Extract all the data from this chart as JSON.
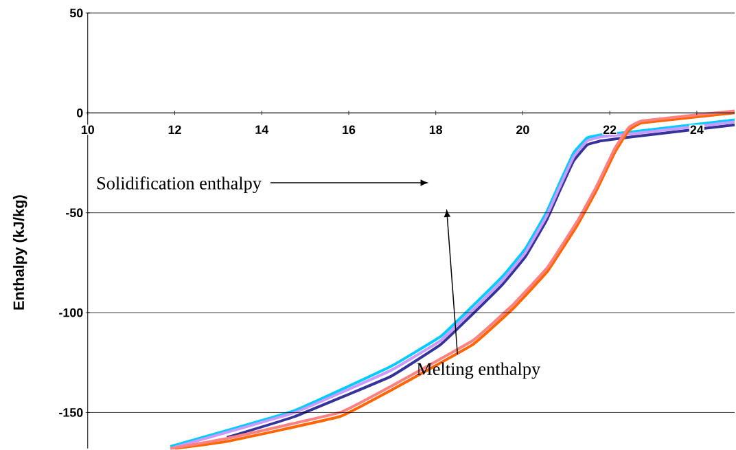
{
  "chart_data": {
    "type": "line",
    "ylabel": "Enthalpy (kJ/kg)",
    "xlim": [
      10,
      24.87
    ],
    "ylim": [
      -168,
      50
    ],
    "xticks": [
      10,
      12,
      14,
      16,
      18,
      20,
      22,
      24
    ],
    "yticks": [
      -150,
      -100,
      -50,
      0,
      50
    ],
    "grid": "y",
    "marker": "none",
    "line_style": "solid",
    "annotations": [
      "Solidification enthalpy",
      "Melting enthalpy"
    ],
    "series": [
      {
        "color": "#00ccff",
        "x": [
          11.9,
          14.76,
          16.96,
          18.11,
          18.74,
          19.53,
          20.06,
          20.54,
          20.85,
          21.17,
          21.48,
          21.8,
          22.5,
          24.87
        ],
        "values": [
          -167,
          -149,
          -127,
          -112,
          -99,
          -82,
          -68,
          -50,
          -35,
          -20,
          -12.5,
          -11,
          -9.5,
          -3.5
        ]
      },
      {
        "color": "#333399",
        "x": [
          13.2,
          14.76,
          16.96,
          18.11,
          18.74,
          19.53,
          20.06,
          20.54,
          20.85,
          21.17,
          21.48,
          21.8,
          22.5,
          24.87
        ],
        "values": [
          -162.5,
          -152,
          -132,
          -116,
          -103,
          -86,
          -72,
          -54,
          -39,
          -24,
          -16,
          -14,
          -12,
          -6
        ]
      },
      {
        "color": "#cc99ff",
        "x": [
          11.9,
          14.76,
          16.96,
          18.11,
          18.74,
          19.53,
          20.06,
          20.54,
          20.85,
          21.17,
          21.48,
          21.8,
          22.5,
          24.87
        ],
        "values": [
          -168,
          -150,
          -129,
          -114,
          -101,
          -84,
          -70,
          -52,
          -37,
          -22,
          -14,
          -12,
          -10.5,
          -4.5
        ]
      },
      {
        "color": "#ff6600",
        "x": [
          12.0,
          13.2,
          15.8,
          16.96,
          18.85,
          19.8,
          20.58,
          21.26,
          21.69,
          22.11,
          22.43,
          22.74,
          24.87
        ],
        "values": [
          -168,
          -164.5,
          -152,
          -139,
          -116,
          -97.5,
          -79,
          -56,
          -39,
          -20,
          -9,
          -5,
          0
        ]
      },
      {
        "color": "#ff8080",
        "x": [
          11.9,
          13.2,
          15.8,
          16.96,
          18.85,
          19.8,
          20.58,
          21.26,
          21.69,
          22.11,
          22.43,
          22.74,
          24.87
        ],
        "values": [
          -168,
          -163,
          -150,
          -137,
          -114,
          -95.5,
          -77,
          -54,
          -37,
          -18,
          -7.5,
          -4,
          1
        ]
      }
    ]
  }
}
